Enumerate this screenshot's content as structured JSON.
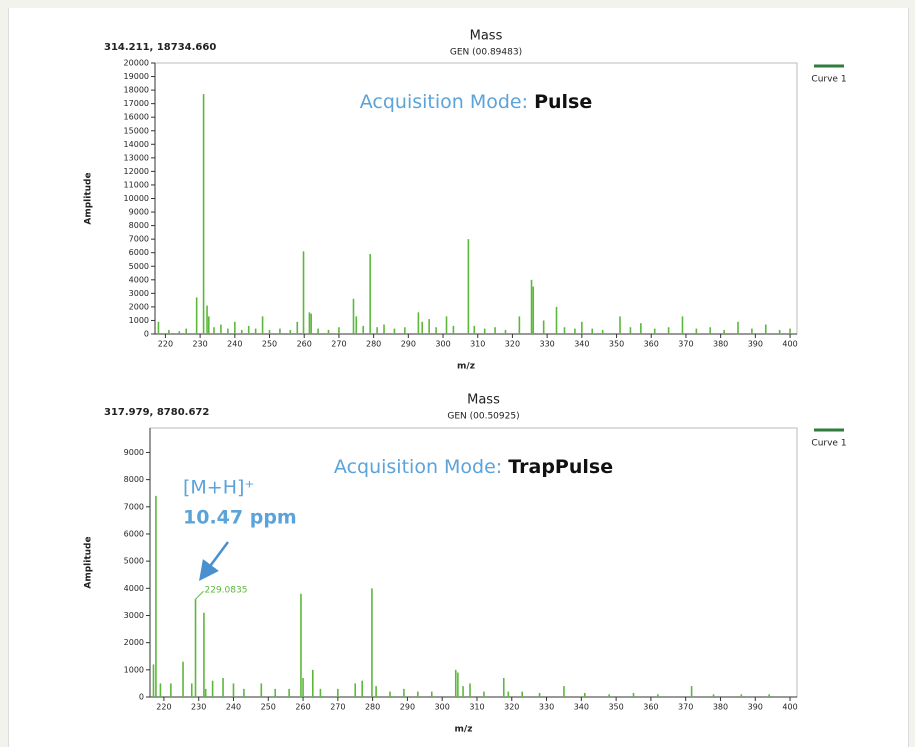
{
  "chart_data": [
    {
      "type": "stem",
      "title": "Mass",
      "subtitle": "GEN (00.89483)",
      "readout": "314.211, 18734.660",
      "annotation": [
        "Acquisition Mode:",
        "Pulse"
      ],
      "x_label": "m/z",
      "y_label": "Amplitude",
      "series": [
        {
          "name": "Curve 1",
          "color": "#5cb83c",
          "x": [
            218,
            221,
            224,
            226,
            229,
            231,
            232,
            232.5,
            234,
            236,
            238,
            240,
            242,
            244,
            246,
            248,
            250,
            253,
            256,
            258,
            259.8,
            261.5,
            262,
            264,
            267,
            270,
            274.2,
            275,
            277,
            279,
            281,
            283,
            286,
            289,
            292.9,
            294,
            296,
            298,
            301,
            303,
            307.3,
            309,
            312,
            315,
            318,
            322,
            325.5,
            326,
            329,
            332.7,
            335,
            338,
            340,
            343,
            346,
            351,
            354,
            357,
            361,
            365,
            369,
            373,
            377,
            381,
            385,
            389,
            393,
            397,
            400
          ],
          "values": [
            900,
            300,
            200,
            400,
            2700,
            17700,
            2100,
            1300,
            500,
            700,
            400,
            900,
            300,
            600,
            400,
            1300,
            300,
            400,
            300,
            900,
            6100,
            1600,
            1500,
            400,
            300,
            500,
            2600,
            1300,
            600,
            5900,
            500,
            700,
            400,
            500,
            1600,
            900,
            1100,
            500,
            1300,
            600,
            7000,
            600,
            400,
            500,
            300,
            1300,
            4000,
            3500,
            1000,
            2000,
            500,
            400,
            900,
            400,
            300,
            1300,
            500,
            800,
            400,
            500,
            1300,
            400,
            500,
            300,
            900,
            400,
            700,
            300,
            400
          ]
        }
      ],
      "xlim": [
        217,
        402
      ],
      "ylim": [
        0,
        20000
      ],
      "xticks": [
        220,
        230,
        240,
        250,
        260,
        270,
        280,
        290,
        300,
        310,
        320,
        330,
        340,
        350,
        360,
        370,
        380,
        390,
        400
      ],
      "yticks": [
        0,
        1000,
        2000,
        3000,
        4000,
        5000,
        6000,
        7000,
        8000,
        9000,
        10000,
        11000,
        12000,
        13000,
        14000,
        15000,
        16000,
        17000,
        18000,
        19000,
        20000
      ]
    },
    {
      "type": "stem",
      "title": "Mass",
      "subtitle": "GEN (00.50925)",
      "readout": "317.979, 8780.672",
      "annotation": [
        "Acquisition Mode:",
        "TrapPulse"
      ],
      "x_label": "m/z",
      "y_label": "Amplitude",
      "ion_label": "[M+H]⁺",
      "ppm_label": "10.47 ppm",
      "peak_label": "229.0835",
      "series": [
        {
          "name": "Curve 1",
          "color": "#5cb83c",
          "x": [
            217,
            217.7,
            219,
            222,
            225.5,
            228,
            229.0835,
            231.5,
            232,
            234,
            237,
            240,
            243,
            248,
            252,
            256,
            259.4,
            260,
            262.8,
            265,
            270,
            275,
            277,
            279.8,
            281,
            285,
            289,
            293,
            297,
            303.9,
            304.5,
            306,
            308,
            312,
            317.7,
            319,
            323,
            328,
            335,
            341,
            348,
            355,
            362,
            371.7,
            378,
            386,
            394
          ],
          "values": [
            1200,
            7400,
            500,
            500,
            1300,
            500,
            3600,
            3100,
            300,
            600,
            700,
            500,
            300,
            500,
            300,
            300,
            3800,
            700,
            1000,
            300,
            300,
            500,
            600,
            4000,
            400,
            200,
            300,
            200,
            200,
            1000,
            900,
            400,
            500,
            200,
            700,
            200,
            200,
            150,
            400,
            150,
            100,
            150,
            100,
            400,
            100,
            100,
            100
          ]
        }
      ],
      "xlim": [
        216,
        402
      ],
      "ylim": [
        0,
        9900
      ],
      "xticks": [
        220,
        230,
        240,
        250,
        260,
        270,
        280,
        290,
        300,
        310,
        320,
        330,
        340,
        350,
        360,
        370,
        380,
        390,
        400
      ],
      "yticks": [
        0,
        1000,
        2000,
        3000,
        4000,
        5000,
        6000,
        7000,
        8000,
        9000
      ]
    }
  ]
}
